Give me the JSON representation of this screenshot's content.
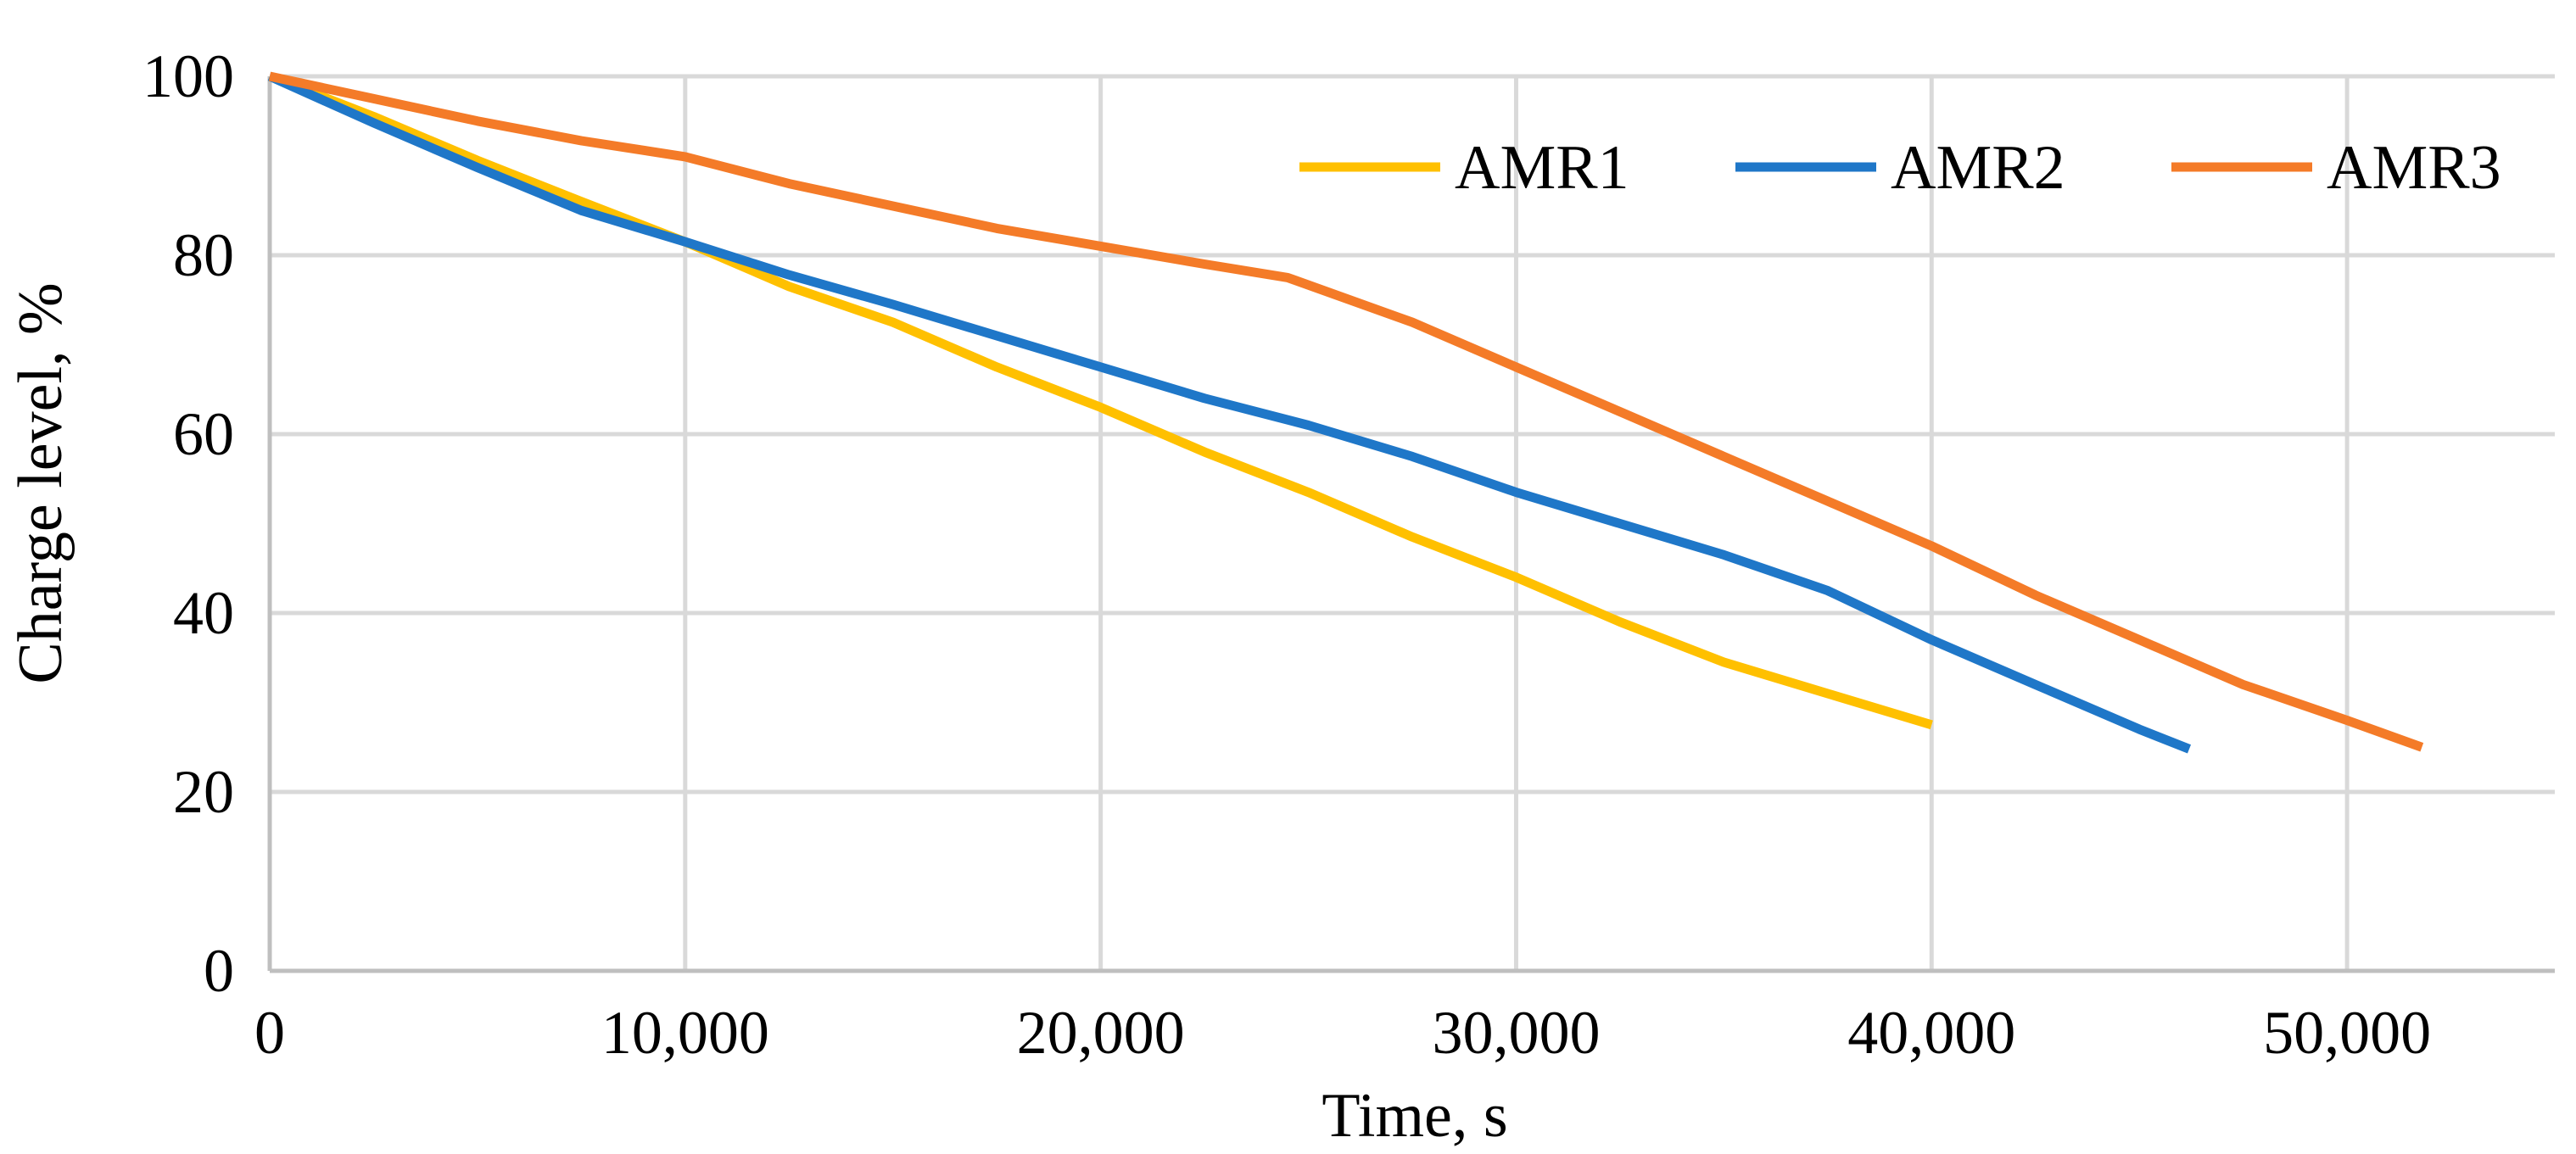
{
  "chart_data": {
    "type": "line",
    "title": "",
    "xlabel": "Time, s",
    "ylabel": "Charge level, %",
    "xlim": [
      0,
      55000
    ],
    "ylim": [
      0,
      100
    ],
    "x_ticks": [
      0,
      10000,
      20000,
      30000,
      40000,
      50000
    ],
    "x_tick_labels": [
      "0",
      "10,000",
      "20,000",
      "30,000",
      "40,000",
      "50,000"
    ],
    "y_ticks": [
      0,
      20,
      40,
      60,
      80,
      100
    ],
    "y_tick_labels": [
      "0",
      "20",
      "40",
      "60",
      "80",
      "100"
    ],
    "grid": true,
    "legend_position": "top-right",
    "series": [
      {
        "name": "AMR1",
        "color": "#FFC000",
        "x": [
          0,
          2500,
          5000,
          7500,
          10000,
          12500,
          15000,
          17500,
          20000,
          22500,
          25000,
          27500,
          30000,
          32500,
          35000,
          37500,
          40000
        ],
        "y": [
          100,
          95.5,
          90.6,
          86,
          81.5,
          76.5,
          72.5,
          67.5,
          63,
          58,
          53.5,
          48.5,
          44,
          39,
          34.5,
          31,
          27.5
        ]
      },
      {
        "name": "AMR2",
        "color": "#1F77C8",
        "x": [
          0,
          2500,
          5000,
          7500,
          10000,
          12500,
          15000,
          17500,
          20000,
          22500,
          25000,
          27500,
          30000,
          32500,
          35000,
          37500,
          40000,
          42500,
          45000,
          46200
        ],
        "y": [
          100,
          94.8,
          89.8,
          85,
          81.5,
          77.8,
          74.5,
          71,
          67.5,
          64,
          61,
          57.5,
          53.5,
          50,
          46.5,
          42.5,
          37,
          32,
          27,
          24.8
        ]
      },
      {
        "name": "AMR3",
        "color": "#F47B28",
        "x": [
          0,
          2500,
          5000,
          7500,
          10000,
          12500,
          15000,
          17500,
          20000,
          22500,
          24500,
          27500,
          30000,
          32500,
          35000,
          37500,
          40000,
          42500,
          45000,
          47500,
          50000,
          51800
        ],
        "y": [
          100,
          97.5,
          95,
          92.8,
          91,
          88,
          85.5,
          83,
          81,
          79,
          77.5,
          72.5,
          67.5,
          62.5,
          57.5,
          52.5,
          47.5,
          42,
          37,
          32,
          28,
          25
        ]
      }
    ]
  }
}
